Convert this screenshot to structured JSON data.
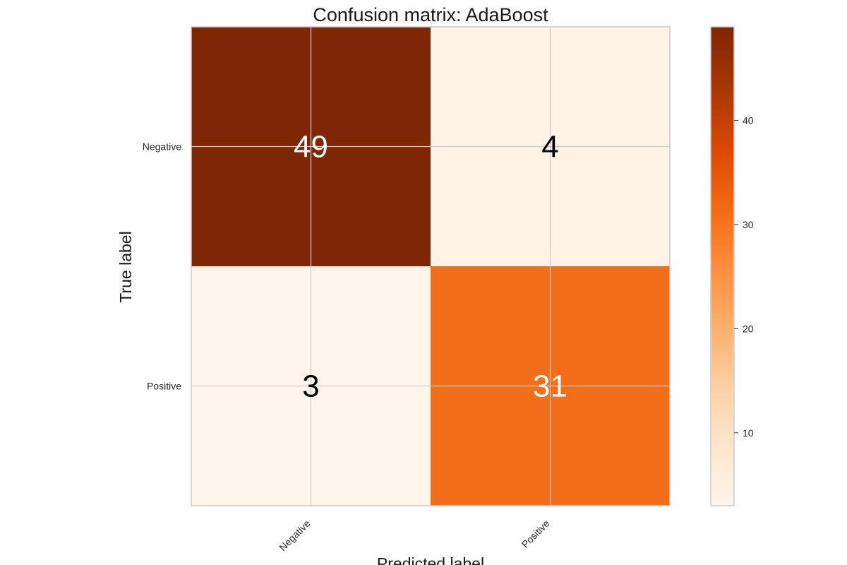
{
  "chart_data": {
    "type": "heatmap",
    "title": "Confusion matrix: AdaBoost",
    "xlabel": "Predicted label",
    "ylabel": "True label",
    "row_labels": [
      "Negative",
      "Positive"
    ],
    "col_labels": [
      "Negative",
      "Positive"
    ],
    "values": [
      [
        49,
        4
      ],
      [
        3,
        31
      ]
    ],
    "colormap": "Oranges",
    "colorbar": {
      "range": [
        3,
        49
      ],
      "ticks": [
        10,
        20,
        30,
        40
      ]
    },
    "grid": true
  }
}
